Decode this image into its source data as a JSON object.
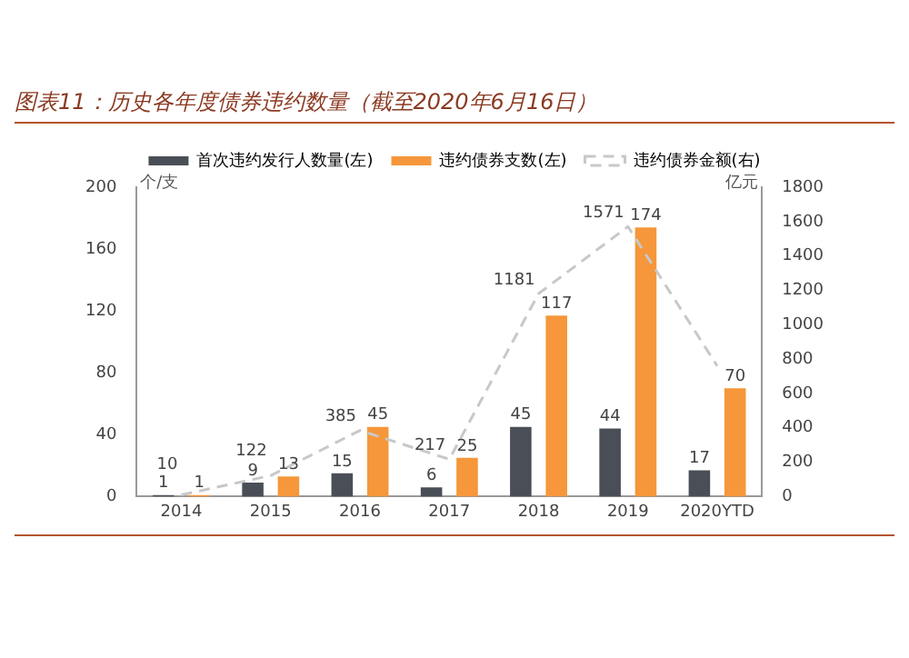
{
  "chart_data": {
    "type": "bar",
    "title": "图表11：历史各年度债券违约数量（截至2020年6月16日）",
    "ylabel": "个/支",
    "y2label": "亿元",
    "categories": [
      "2014",
      "2015",
      "2016",
      "2017",
      "2018",
      "2019",
      "2020YTD"
    ],
    "series": [
      {
        "name": "首次违约发行人数量(左)",
        "color": "#4a4f57",
        "values": [
          1,
          9,
          15,
          6,
          45,
          44,
          17
        ]
      },
      {
        "name": "违约债券支数(左)",
        "color": "#f5973a",
        "values": [
          1,
          13,
          45,
          25,
          117,
          174,
          70
        ]
      },
      {
        "name": "违约债券金额(右)",
        "type": "line",
        "axis": "y2",
        "color": "#c8c8c8",
        "line_style": "dashed",
        "marker": "none",
        "values": [
          10,
          122,
          385,
          217,
          1181,
          1571,
          760
        ],
        "value_labels": [
          "10",
          "122",
          "385",
          "217",
          "1181",
          "1571",
          null
        ]
      }
    ],
    "ylim": [
      0,
      200
    ],
    "yticks": [
      0,
      40,
      80,
      120,
      160,
      200
    ],
    "y2lim": [
      0,
      1800
    ],
    "y2ticks": [
      0,
      200,
      400,
      600,
      800,
      1000,
      1200,
      1400,
      1600,
      1800
    ],
    "data_labels": true,
    "legend": "top",
    "grid": false
  }
}
